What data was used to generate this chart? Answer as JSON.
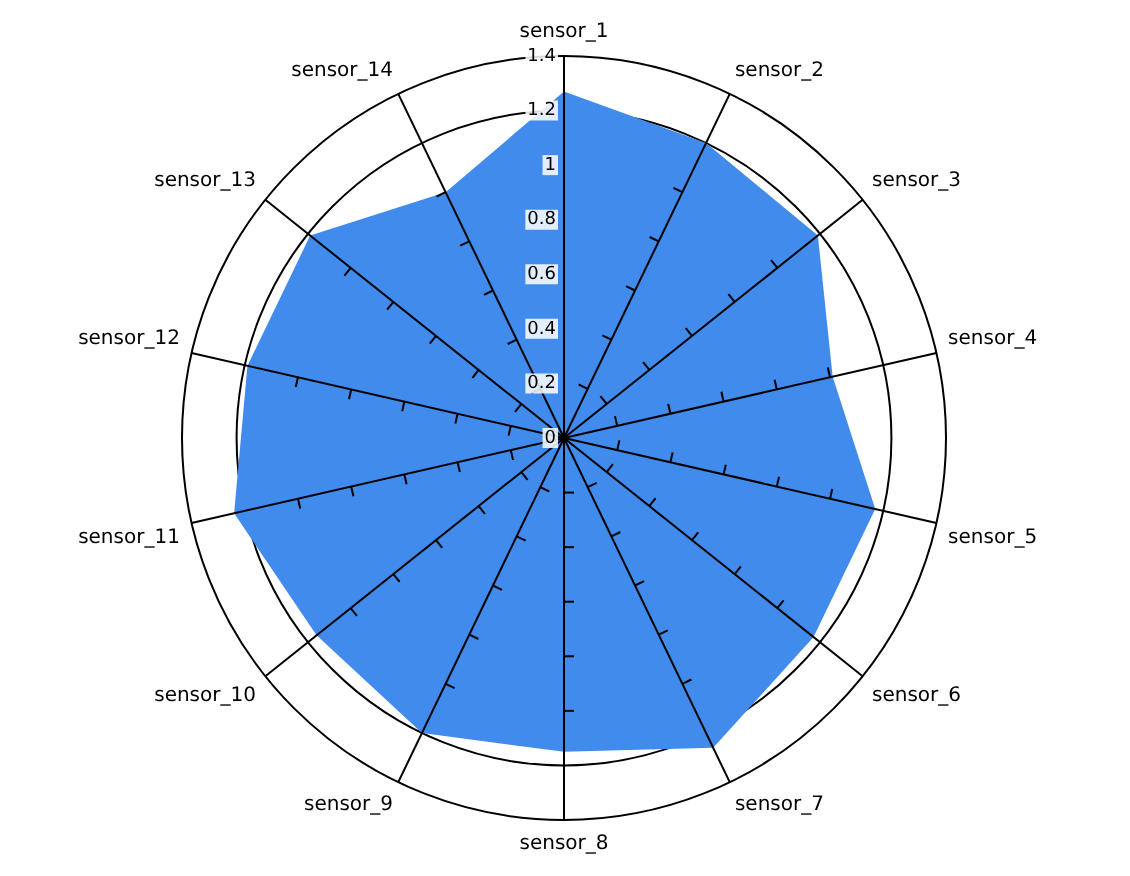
{
  "chart_data": {
    "type": "radar",
    "categories": [
      "sensor_1",
      "sensor_2",
      "sensor_3",
      "sensor_4",
      "sensor_5",
      "sensor_6",
      "sensor_7",
      "sensor_8",
      "sensor_9",
      "sensor_10",
      "sensor_11",
      "sensor_12",
      "sensor_13",
      "sensor_14"
    ],
    "series": [
      {
        "color": "#418bec",
        "values": [
          1.27,
          1.2,
          1.19,
          1.01,
          1.17,
          1.17,
          1.26,
          1.15,
          1.2,
          1.16,
          1.24,
          1.19,
          1.19,
          1.0
        ]
      }
    ],
    "ylim": [
      0,
      1.4
    ],
    "yticks": [
      0,
      0.2,
      0.4,
      0.6,
      0.8,
      1,
      1.2,
      1.4
    ],
    "grid": true,
    "legend": false,
    "marker": "none"
  }
}
